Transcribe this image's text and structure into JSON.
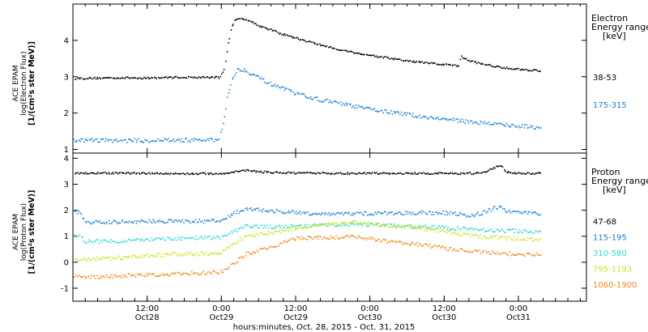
{
  "chart_data": {
    "type": "scatter",
    "x_axis": {
      "label": "hours:minutes, Oct. 28, 2015 - Oct. 31, 2015",
      "range_hours": [
        -8,
        75
      ],
      "ticks": [
        {
          "hour": 4,
          "time": "12:00",
          "date": "Oct28"
        },
        {
          "hour": 16,
          "time": "0:00",
          "date": "Oct29"
        },
        {
          "hour": 28,
          "time": "12:00",
          "date": "Oct29"
        },
        {
          "hour": 40,
          "time": "0:00",
          "date": "Oct30"
        },
        {
          "hour": 52,
          "time": "12:00",
          "date": "Oct30"
        },
        {
          "hour": 64,
          "time": "0:00",
          "date": "Oct31"
        }
      ]
    },
    "panels": [
      {
        "ylabel_lines": [
          "ACE EPAM",
          "log(Electron Flux)",
          "[1/(cm²s ster MeV)]"
        ],
        "ylim": [
          0.9,
          5.0
        ],
        "yticks": [
          1,
          2,
          3,
          4
        ],
        "legend_title": [
          "Electron",
          "Energy ranges",
          "[keV]"
        ],
        "series": [
          {
            "name": "38-53",
            "color": "#000000",
            "points": [
              [
                -8,
                2.97
              ],
              [
                -4,
                2.98
              ],
              [
                0,
                2.99
              ],
              [
                4,
                2.98
              ],
              [
                8,
                3.0
              ],
              [
                12,
                3.0
              ],
              [
                14,
                3.0
              ],
              [
                15.8,
                3.0
              ],
              [
                16.5,
                3.3
              ],
              [
                17,
                3.9
              ],
              [
                17.5,
                4.35
              ],
              [
                18,
                4.55
              ],
              [
                19,
                4.62
              ],
              [
                20,
                4.6
              ],
              [
                22,
                4.42
              ],
              [
                26,
                4.18
              ],
              [
                30,
                3.98
              ],
              [
                34,
                3.8
              ],
              [
                38,
                3.66
              ],
              [
                42,
                3.55
              ],
              [
                46,
                3.45
              ],
              [
                50,
                3.38
              ],
              [
                54,
                3.32
              ],
              [
                54.4,
                3.28
              ],
              [
                54.6,
                3.58
              ],
              [
                56,
                3.45
              ],
              [
                60,
                3.3
              ],
              [
                64,
                3.22
              ],
              [
                66,
                3.2
              ],
              [
                67.5,
                3.18
              ]
            ]
          },
          {
            "name": "175-315",
            "color": "#1a80d4",
            "points": [
              [
                -8,
                1.27
              ],
              [
                -4,
                1.27
              ],
              [
                0,
                1.26
              ],
              [
                4,
                1.26
              ],
              [
                8,
                1.27
              ],
              [
                12,
                1.27
              ],
              [
                14,
                1.27
              ],
              [
                15.5,
                1.28
              ],
              [
                16.2,
                1.7
              ],
              [
                16.8,
                2.4
              ],
              [
                17.5,
                2.9
              ],
              [
                18.5,
                3.2
              ],
              [
                19.5,
                3.22
              ],
              [
                21,
                3.08
              ],
              [
                24,
                2.8
              ],
              [
                28,
                2.55
              ],
              [
                32,
                2.38
              ],
              [
                36,
                2.25
              ],
              [
                40,
                2.12
              ],
              [
                44,
                2.02
              ],
              [
                48,
                1.93
              ],
              [
                52,
                1.85
              ],
              [
                56,
                1.78
              ],
              [
                60,
                1.72
              ],
              [
                64,
                1.66
              ],
              [
                67.5,
                1.62
              ]
            ]
          }
        ]
      },
      {
        "ylabel_lines": [
          "ACE EPAM",
          "log(Proton Flux)",
          "[1/(cm²s ster MeV)]"
        ],
        "ylim": [
          -1.5,
          4.2
        ],
        "yticks": [
          -1,
          0,
          1,
          2,
          3,
          4
        ],
        "legend_title": [
          "Proton",
          "Energy ranges",
          "[keV]"
        ],
        "series": [
          {
            "name": "47-68",
            "color": "#000000",
            "points": [
              [
                -8,
                3.45
              ],
              [
                0,
                3.45
              ],
              [
                8,
                3.43
              ],
              [
                16,
                3.43
              ],
              [
                18,
                3.5
              ],
              [
                20,
                3.56
              ],
              [
                22,
                3.5
              ],
              [
                28,
                3.45
              ],
              [
                36,
                3.44
              ],
              [
                44,
                3.44
              ],
              [
                52,
                3.44
              ],
              [
                58,
                3.44
              ],
              [
                59.5,
                3.6
              ],
              [
                61,
                3.75
              ],
              [
                62,
                3.5
              ],
              [
                64,
                3.44
              ],
              [
                67.5,
                3.44
              ]
            ]
          },
          {
            "name": "115-195",
            "color": "#1a80d4",
            "points": [
              [
                -8,
                1.95
              ],
              [
                -7,
                1.95
              ],
              [
                -6,
                1.55
              ],
              [
                0,
                1.58
              ],
              [
                6,
                1.6
              ],
              [
                12,
                1.6
              ],
              [
                16,
                1.62
              ],
              [
                18,
                1.9
              ],
              [
                20,
                2.08
              ],
              [
                24,
                2.0
              ],
              [
                28,
                1.92
              ],
              [
                34,
                1.88
              ],
              [
                40,
                1.9
              ],
              [
                46,
                1.92
              ],
              [
                52,
                1.93
              ],
              [
                56,
                1.82
              ],
              [
                58,
                1.9
              ],
              [
                60,
                2.1
              ],
              [
                61,
                2.15
              ],
              [
                62,
                1.95
              ],
              [
                64,
                1.93
              ],
              [
                67.5,
                1.9
              ]
            ]
          },
          {
            "name": "310-580",
            "color": "#30d8d0",
            "points": [
              [
                -8,
                1.0
              ],
              [
                -7,
                1.05
              ],
              [
                -6,
                0.82
              ],
              [
                0,
                0.85
              ],
              [
                6,
                0.9
              ],
              [
                12,
                0.95
              ],
              [
                16,
                0.98
              ],
              [
                18,
                1.2
              ],
              [
                20,
                1.42
              ],
              [
                24,
                1.38
              ],
              [
                30,
                1.42
              ],
              [
                36,
                1.48
              ],
              [
                42,
                1.45
              ],
              [
                48,
                1.4
              ],
              [
                54,
                1.32
              ],
              [
                60,
                1.25
              ],
              [
                67.5,
                1.2
              ]
            ]
          },
          {
            "name": "795-1193",
            "color": "#d0e020",
            "points": [
              [
                -8,
                0.1
              ],
              [
                0,
                0.2
              ],
              [
                6,
                0.3
              ],
              [
                12,
                0.35
              ],
              [
                16,
                0.4
              ],
              [
                18,
                0.75
              ],
              [
                20,
                1.05
              ],
              [
                24,
                1.15
              ],
              [
                28,
                1.35
              ],
              [
                34,
                1.5
              ],
              [
                38,
                1.55
              ],
              [
                42,
                1.45
              ],
              [
                48,
                1.35
              ],
              [
                52,
                1.2
              ],
              [
                58,
                1.0
              ],
              [
                64,
                0.92
              ],
              [
                67.5,
                0.9
              ]
            ]
          },
          {
            "name": "1060-1900",
            "color": "#f08a20",
            "points": [
              [
                -8,
                -0.5
              ],
              [
                -4,
                -0.55
              ],
              [
                0,
                -0.5
              ],
              [
                6,
                -0.45
              ],
              [
                12,
                -0.4
              ],
              [
                16,
                -0.35
              ],
              [
                18,
                0.0
              ],
              [
                20,
                0.35
              ],
              [
                24,
                0.6
              ],
              [
                28,
                0.95
              ],
              [
                34,
                0.98
              ],
              [
                38,
                1.0
              ],
              [
                42,
                0.85
              ],
              [
                48,
                0.7
              ],
              [
                54,
                0.5
              ],
              [
                60,
                0.38
              ],
              [
                67.5,
                0.3
              ]
            ]
          }
        ]
      }
    ]
  }
}
